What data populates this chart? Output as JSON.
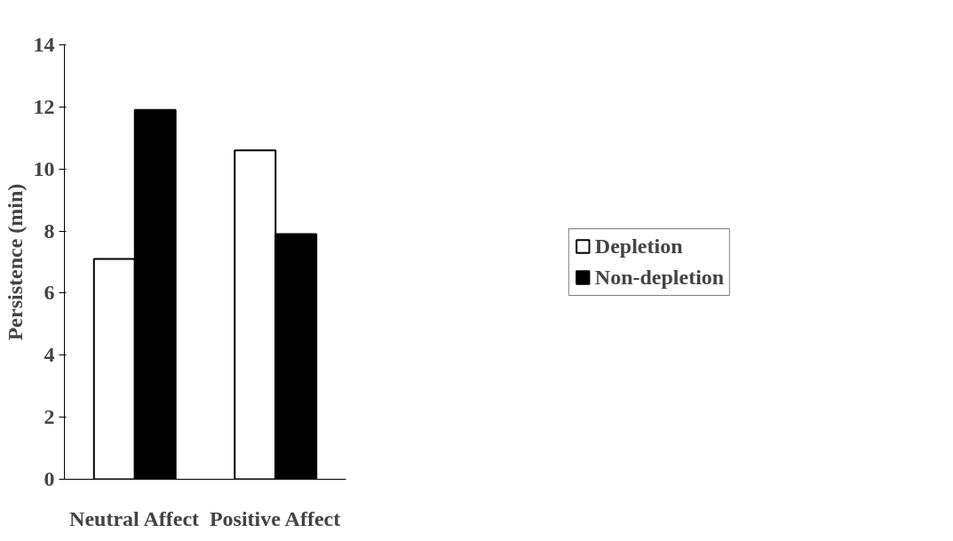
{
  "chart_data": {
    "type": "bar",
    "categories": [
      "Neutral Affect",
      "Positive Affect"
    ],
    "series": [
      {
        "name": "Depletion",
        "color": "#ffffff",
        "values": [
          7.1,
          10.6
        ]
      },
      {
        "name": "Non-depletion",
        "color": "#000000",
        "values": [
          11.9,
          7.9
        ]
      }
    ],
    "ylabel": "Persistence (min)",
    "ylim": [
      0,
      14
    ],
    "yticks": [
      0,
      2,
      4,
      6,
      8,
      10,
      12,
      14
    ],
    "grid": false,
    "legend": "right"
  }
}
